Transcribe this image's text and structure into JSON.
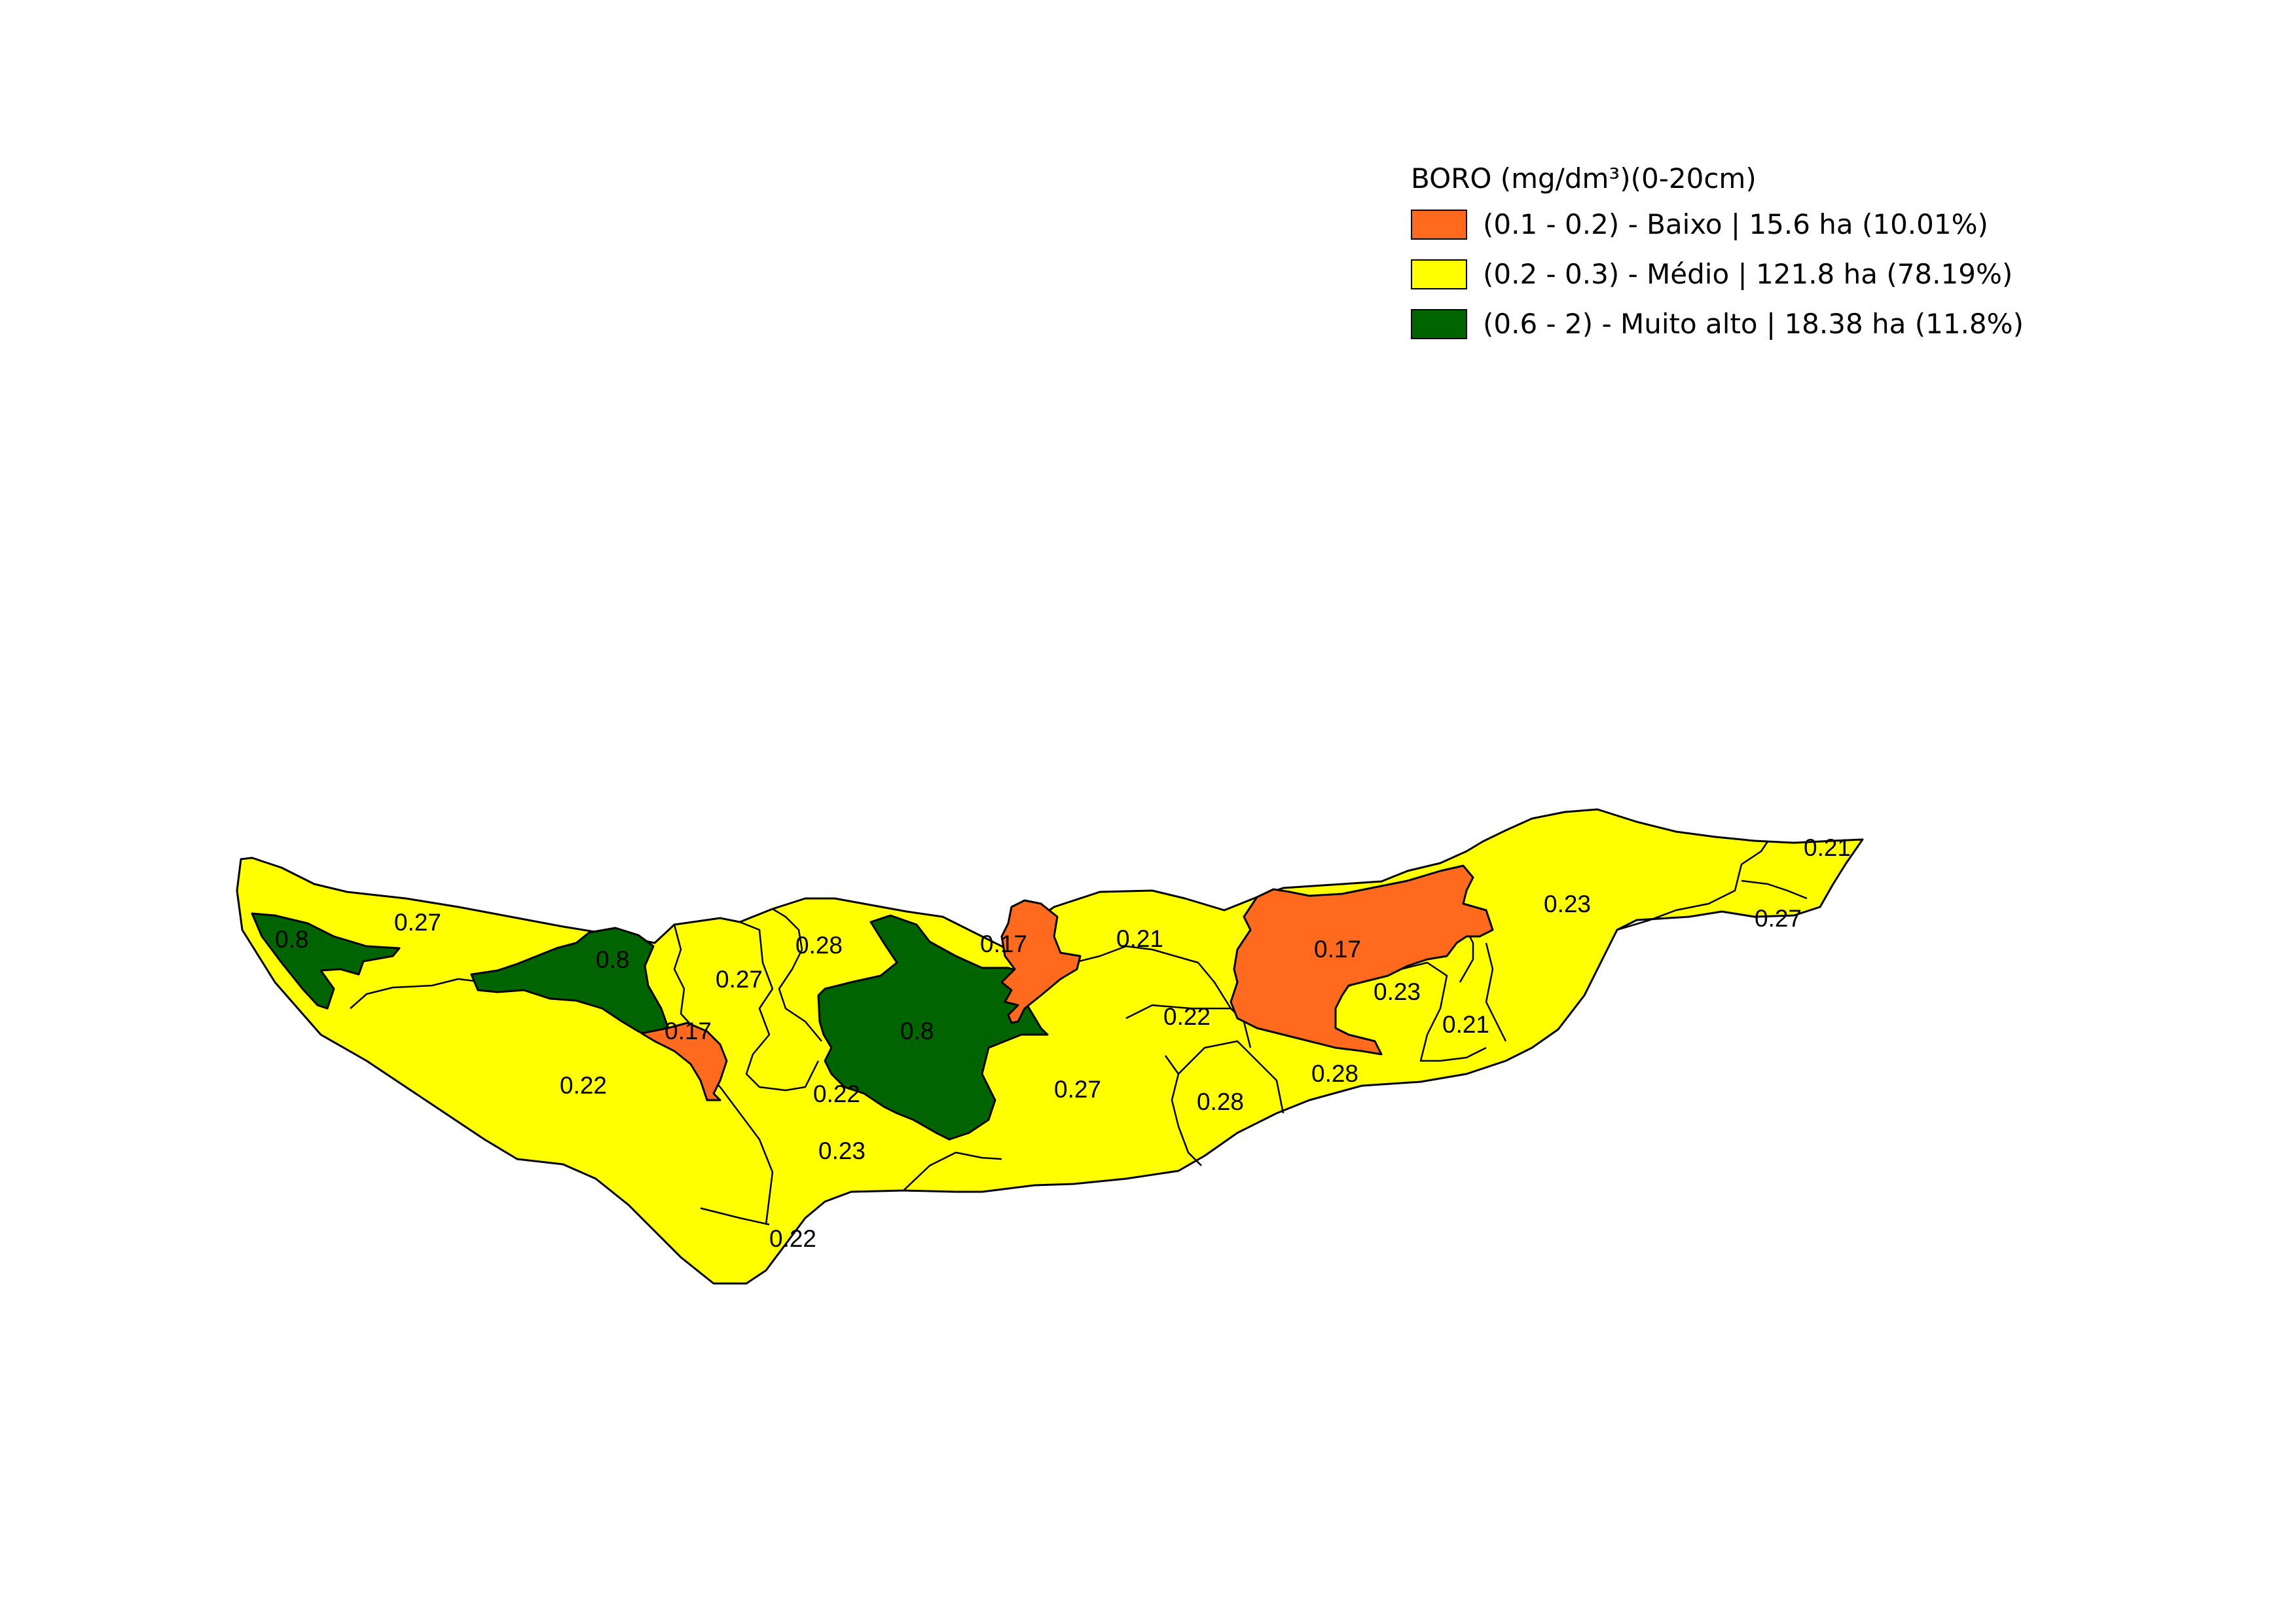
{
  "legend": {
    "title": "BORO (mg/dm³)(0-20cm)",
    "items": [
      {
        "label": "(0.1 - 0.2) - Baixo | 15.6 ha (10.01%)",
        "color": "#ff6a1f"
      },
      {
        "label": "(0.2 - 0.3) - Médio | 121.8 ha (78.19%)",
        "color": "#ffff00"
      },
      {
        "label": "(0.6 - 2) - Muito alto | 18.38 ha (11.8%)",
        "color": "#006400"
      }
    ]
  },
  "zone_labels": [
    "0.8",
    "0.27",
    "0.8",
    "0.27",
    "0.28",
    "0.17",
    "0.21",
    "0.17",
    "0.23",
    "0.21",
    "0.27",
    "0.17",
    "0.8",
    "0.22",
    "0.22",
    "0.27",
    "0.28",
    "0.28",
    "0.23",
    "0.21",
    "0.22",
    "0.23",
    "0.22"
  ]
}
